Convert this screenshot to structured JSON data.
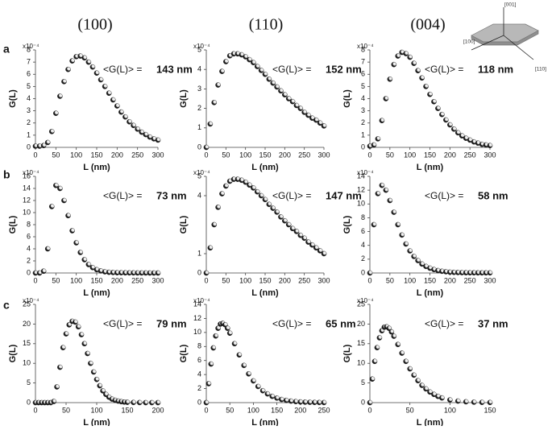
{
  "columns": [
    "(100)",
    "(110)",
    "(004)"
  ],
  "rows": [
    "a",
    "b",
    "c"
  ],
  "inset": {
    "labels": [
      "[001]",
      "[100]",
      "[110]"
    ]
  },
  "chart_data": [
    {
      "type": "scatter",
      "y_scale": "x10⁻⁴",
      "xlabel": "L (nm)",
      "ylabel": "G(L)",
      "mean_label": "<G(L)> =",
      "mean": "143 nm",
      "color": "#1a1a1a",
      "x": [
        0,
        10,
        20,
        30,
        40,
        50,
        60,
        70,
        80,
        90,
        100,
        110,
        120,
        130,
        140,
        150,
        160,
        170,
        180,
        190,
        200,
        210,
        220,
        230,
        240,
        250,
        260,
        270,
        280,
        290,
        300
      ],
      "values": [
        0.1,
        0.1,
        0.15,
        0.4,
        1.3,
        2.8,
        4.2,
        5.4,
        6.4,
        7.1,
        7.45,
        7.5,
        7.35,
        7.0,
        6.6,
        6.1,
        5.55,
        5.0,
        4.45,
        3.9,
        3.4,
        2.9,
        2.5,
        2.1,
        1.8,
        1.5,
        1.25,
        1.05,
        0.85,
        0.7,
        0.6
      ],
      "xlim": [
        0,
        300
      ],
      "xticks": [
        0,
        50,
        100,
        150,
        200,
        250,
        300
      ],
      "ylim": [
        0,
        8
      ],
      "yticks": [
        0,
        1,
        2,
        3,
        4,
        5,
        6,
        7,
        8
      ]
    },
    {
      "type": "scatter",
      "y_scale": "x10⁻⁴",
      "xlabel": "L (nm)",
      "ylabel": "G(L)",
      "mean_label": "<G(L)> =",
      "mean": "152 nm",
      "color": "#1a1a1a",
      "x": [
        0,
        10,
        20,
        30,
        40,
        50,
        60,
        70,
        80,
        90,
        100,
        110,
        120,
        130,
        140,
        150,
        160,
        170,
        180,
        190,
        200,
        210,
        220,
        230,
        240,
        250,
        260,
        270,
        280,
        290,
        300
      ],
      "values": [
        0,
        1.2,
        2.3,
        3.2,
        3.9,
        4.4,
        4.7,
        4.8,
        4.8,
        4.75,
        4.65,
        4.5,
        4.35,
        4.15,
        3.95,
        3.75,
        3.5,
        3.3,
        3.1,
        2.9,
        2.7,
        2.5,
        2.35,
        2.15,
        2.0,
        1.8,
        1.65,
        1.5,
        1.4,
        1.25,
        1.1
      ],
      "xlim": [
        0,
        300
      ],
      "xticks": [
        0,
        50,
        100,
        150,
        200,
        250,
        300
      ],
      "ylim": [
        0,
        5
      ],
      "yticks": [
        0,
        1,
        2,
        3,
        4,
        5
      ]
    },
    {
      "type": "scatter",
      "y_scale": "x10⁻⁴",
      "xlabel": "L (nm)",
      "ylabel": "G(L)",
      "mean_label": "<G(L)> =",
      "mean": "118 nm",
      "color": "#1a1a1a",
      "x": [
        0,
        10,
        20,
        30,
        40,
        50,
        60,
        70,
        80,
        90,
        100,
        110,
        120,
        130,
        140,
        150,
        160,
        170,
        180,
        190,
        200,
        210,
        220,
        230,
        240,
        250,
        260,
        270,
        280,
        290,
        300
      ],
      "values": [
        0.1,
        0.2,
        0.7,
        2.2,
        4.0,
        5.6,
        6.8,
        7.5,
        7.8,
        7.7,
        7.4,
        6.9,
        6.3,
        5.7,
        5.0,
        4.35,
        3.75,
        3.2,
        2.7,
        2.25,
        1.85,
        1.5,
        1.2,
        0.95,
        0.75,
        0.6,
        0.45,
        0.35,
        0.25,
        0.2,
        0.15
      ],
      "xlim": [
        0,
        300
      ],
      "xticks": [
        0,
        50,
        100,
        150,
        200,
        250,
        300
      ],
      "ylim": [
        0,
        8
      ],
      "yticks": [
        0,
        1,
        2,
        3,
        4,
        5,
        6,
        7,
        8
      ]
    },
    {
      "type": "scatter",
      "y_scale": "x10⁻⁴",
      "xlabel": "L (nm)",
      "ylabel": "G(L)",
      "mean_label": "<G(L)> =",
      "mean": "73 nm",
      "color": "#1a1a1a",
      "x": [
        0,
        10,
        20,
        30,
        40,
        50,
        60,
        70,
        80,
        90,
        100,
        110,
        120,
        130,
        140,
        150,
        160,
        170,
        180,
        190,
        200,
        210,
        220,
        230,
        240,
        250,
        260,
        270,
        280,
        290,
        300
      ],
      "values": [
        0,
        0,
        0.3,
        4,
        11,
        14.5,
        14,
        12,
        9.5,
        7,
        5,
        3.4,
        2.2,
        1.4,
        0.9,
        0.55,
        0.35,
        0.2,
        0.12,
        0.08,
        0.05,
        0.04,
        0.03,
        0.02,
        0.02,
        0.01,
        0.01,
        0.01,
        0,
        0,
        0
      ],
      "xlim": [
        0,
        300
      ],
      "xticks": [
        0,
        50,
        100,
        150,
        200,
        250,
        300
      ],
      "ylim": [
        0,
        16
      ],
      "yticks": [
        0,
        2,
        4,
        6,
        8,
        10,
        12,
        14,
        16
      ]
    },
    {
      "type": "scatter",
      "y_scale": "x10⁻⁴",
      "xlabel": "L (nm)",
      "ylabel": "G(L)",
      "mean_label": "<G(L)> =",
      "mean": "147 nm",
      "color": "#1a1a1a",
      "x": [
        0,
        10,
        20,
        30,
        40,
        50,
        60,
        70,
        80,
        90,
        100,
        110,
        120,
        130,
        140,
        150,
        160,
        170,
        180,
        190,
        200,
        210,
        220,
        230,
        240,
        250,
        260,
        270,
        280,
        290,
        300
      ],
      "values": [
        0,
        1.3,
        2.5,
        3.4,
        4.1,
        4.5,
        4.75,
        4.85,
        4.85,
        4.8,
        4.7,
        4.55,
        4.4,
        4.2,
        4.0,
        3.8,
        3.55,
        3.35,
        3.15,
        2.9,
        2.7,
        2.5,
        2.3,
        2.15,
        1.95,
        1.8,
        1.6,
        1.45,
        1.3,
        1.15,
        1.0
      ],
      "xlim": [
        0,
        300
      ],
      "xticks": [
        0,
        50,
        100,
        150,
        200,
        250,
        300
      ],
      "ylim": [
        0,
        5
      ],
      "yticks": [
        0,
        1,
        4,
        5
      ]
    },
    {
      "type": "scatter",
      "y_scale": "x10⁻⁴",
      "xlabel": "L (nm)",
      "ylabel": "G(L)",
      "mean_label": "<G(L)> =",
      "mean": "58 nm",
      "color": "#1a1a1a",
      "x": [
        0,
        10,
        20,
        30,
        40,
        50,
        60,
        70,
        80,
        90,
        100,
        110,
        120,
        130,
        140,
        150,
        160,
        170,
        180,
        190,
        200,
        210,
        220,
        230,
        240,
        250,
        260,
        270,
        280,
        290,
        300
      ],
      "values": [
        0,
        7,
        11.5,
        12.7,
        12,
        10.5,
        8.8,
        7,
        5.5,
        4.2,
        3.2,
        2.4,
        1.8,
        1.3,
        0.95,
        0.7,
        0.5,
        0.35,
        0.25,
        0.18,
        0.12,
        0.09,
        0.07,
        0.05,
        0.04,
        0.03,
        0.03,
        0.02,
        0.02,
        0.02,
        0.02
      ],
      "xlim": [
        0,
        300
      ],
      "xticks": [
        0,
        50,
        100,
        150,
        200,
        250,
        300
      ],
      "ylim": [
        0,
        14
      ],
      "yticks": [
        0,
        2,
        4,
        6,
        8,
        10,
        12,
        14
      ]
    },
    {
      "type": "scatter",
      "y_scale": "x10⁻⁴",
      "xlabel": "L (nm)",
      "ylabel": "G(L)",
      "mean_label": "<G(L)> =",
      "mean": "79 nm",
      "color": "#1a1a1a",
      "x": [
        0,
        5,
        10,
        15,
        20,
        25,
        30,
        35,
        40,
        45,
        50,
        55,
        60,
        65,
        70,
        75,
        80,
        85,
        90,
        95,
        100,
        105,
        110,
        115,
        120,
        125,
        130,
        135,
        140,
        145,
        150,
        160,
        170,
        180,
        190,
        200
      ],
      "values": [
        0,
        0,
        0,
        0,
        0,
        0,
        0.3,
        4,
        9,
        14,
        17.5,
        19.8,
        20.7,
        20.5,
        19.3,
        17.3,
        15,
        12.5,
        10,
        7.8,
        5.9,
        4.3,
        3.0,
        2.1,
        1.4,
        0.9,
        0.6,
        0.4,
        0.25,
        0.15,
        0.1,
        0.05,
        0.02,
        0,
        0,
        0
      ],
      "xlim": [
        0,
        200
      ],
      "xticks": [
        0,
        50,
        100,
        150,
        200
      ],
      "ylim": [
        0,
        25
      ],
      "yticks": [
        0,
        5,
        10,
        15,
        20,
        25
      ]
    },
    {
      "type": "scatter",
      "y_scale": "x10⁻⁴",
      "xlabel": "L (nm)",
      "ylabel": "G(L)",
      "mean_label": "<G(L)> =",
      "mean": "65 nm",
      "color": "#1a1a1a",
      "x": [
        0,
        5,
        10,
        15,
        20,
        25,
        30,
        35,
        40,
        45,
        50,
        60,
        70,
        80,
        90,
        100,
        110,
        120,
        130,
        140,
        150,
        160,
        170,
        180,
        190,
        200,
        210,
        220,
        230,
        240,
        250
      ],
      "values": [
        0,
        2.7,
        5.5,
        7.8,
        9.5,
        10.6,
        11.2,
        11.3,
        11.1,
        10.6,
        9.9,
        8.4,
        6.8,
        5.3,
        4.1,
        3.1,
        2.3,
        1.7,
        1.25,
        0.9,
        0.65,
        0.45,
        0.32,
        0.22,
        0.15,
        0.1,
        0.07,
        0.05,
        0.03,
        0.02,
        0.01
      ],
      "xlim": [
        0,
        250
      ],
      "xticks": [
        0,
        50,
        100,
        150,
        200,
        250
      ],
      "ylim": [
        0,
        14
      ],
      "yticks": [
        0,
        2,
        4,
        6,
        8,
        10,
        12,
        14
      ]
    },
    {
      "type": "scatter",
      "y_scale": "x10⁻⁴",
      "xlabel": "L (nm)",
      "ylabel": "G(L)",
      "mean_label": "<G(L)> =",
      "mean": "37 nm",
      "color": "#1a1a1a",
      "x": [
        0,
        3,
        6,
        9,
        12,
        15,
        18,
        21,
        24,
        27,
        30,
        35,
        40,
        45,
        50,
        55,
        60,
        65,
        70,
        75,
        80,
        85,
        90,
        100,
        110,
        120,
        130,
        140,
        150
      ],
      "values": [
        0,
        6,
        10.5,
        14,
        16.5,
        18.3,
        19.2,
        19.3,
        18.9,
        18,
        16.9,
        14.8,
        12.6,
        10.5,
        8.6,
        7,
        5.6,
        4.4,
        3.5,
        2.7,
        2.1,
        1.6,
        1.2,
        0.7,
        0.4,
        0.22,
        0.12,
        0.07,
        0.04
      ],
      "xlim": [
        0,
        150
      ],
      "xticks": [
        0,
        50,
        100,
        150
      ],
      "ylim": [
        0,
        25
      ],
      "yticks": [
        0,
        5,
        10,
        15,
        20,
        25
      ]
    }
  ]
}
